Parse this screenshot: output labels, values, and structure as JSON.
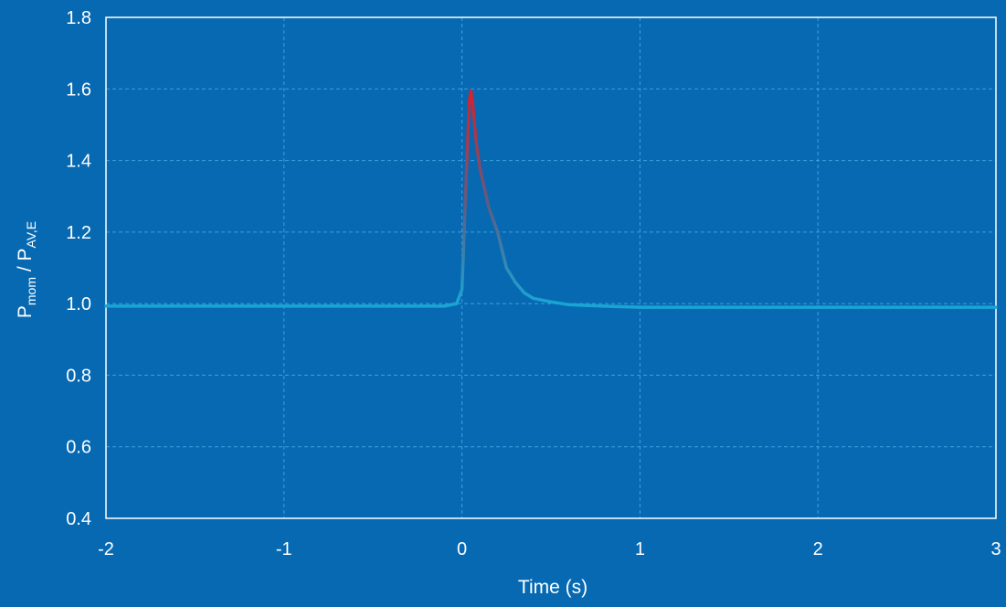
{
  "chart_data": {
    "type": "line",
    "title": "",
    "xlabel": "Time (s)",
    "ylabel": {
      "p1": "P",
      "sub1": "mom",
      "sep": " / ",
      "p2": "P",
      "sub2": "AV,E"
    },
    "xlim": [
      -2,
      3
    ],
    "ylim": [
      0.4,
      1.8
    ],
    "x_ticks": [
      "-2",
      "-1",
      "0",
      "1",
      "2",
      "3"
    ],
    "y_ticks": [
      "0.4",
      "0.6",
      "0.8",
      "1.0",
      "1.2",
      "1.4",
      "1.6",
      "1.8"
    ],
    "grid": true,
    "colors": {
      "background": "#0669b2",
      "plot_border": "#ffffff",
      "grid": "#3fa0dd",
      "baseline_line": "#19a5d4",
      "peak_line": "#d9202a"
    },
    "series": [
      {
        "x": [
          -2.0,
          -1.5,
          -1.0,
          -0.5,
          -0.1,
          -0.03,
          0.0,
          0.02,
          0.04,
          0.05,
          0.06,
          0.08,
          0.1,
          0.15,
          0.2,
          0.25,
          0.3,
          0.35,
          0.4,
          0.5,
          0.6,
          0.8,
          1.0,
          1.5,
          2.0,
          2.5,
          3.0
        ],
        "y": [
          0.993,
          0.993,
          0.993,
          0.993,
          0.993,
          1.0,
          1.04,
          1.3,
          1.56,
          1.595,
          1.56,
          1.45,
          1.38,
          1.27,
          1.2,
          1.1,
          1.06,
          1.03,
          1.015,
          1.005,
          0.997,
          0.993,
          0.99,
          0.99,
          0.99,
          0.99,
          0.99
        ]
      }
    ]
  }
}
